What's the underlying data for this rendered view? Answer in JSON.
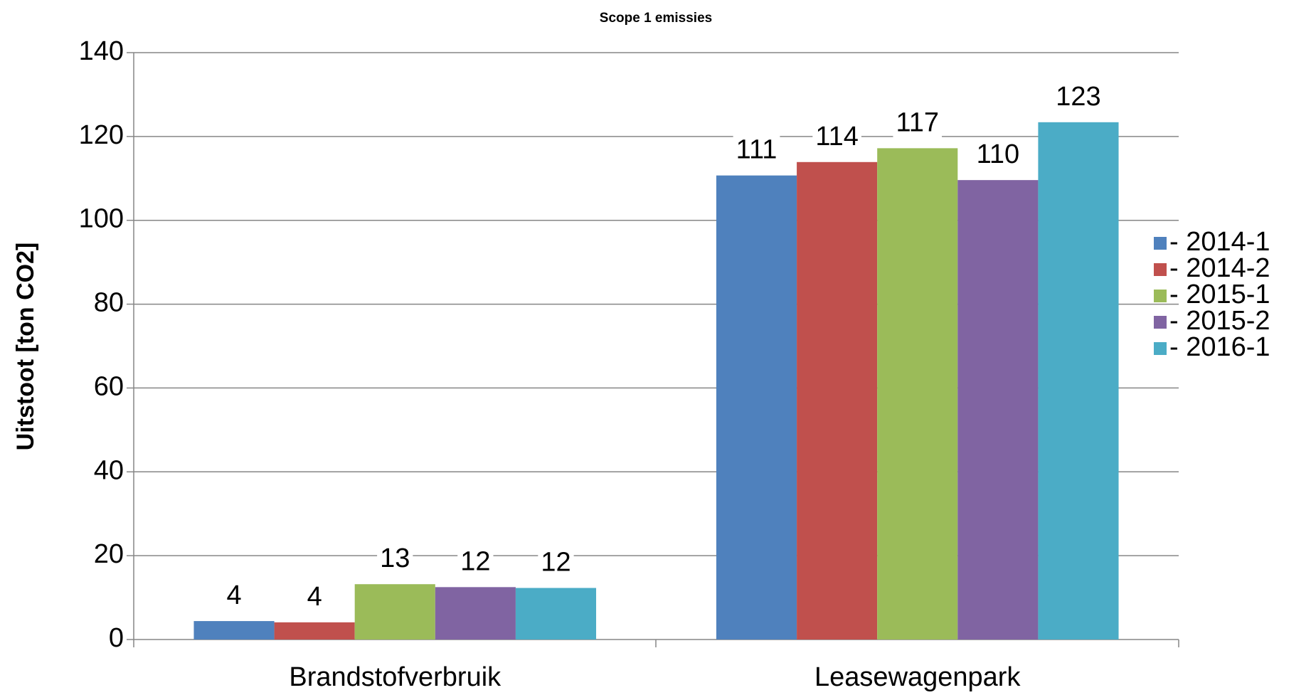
{
  "chart_data": {
    "type": "bar",
    "title": "Scope 1 emissies",
    "ylabel": "Uitstoot [ton CO2]",
    "categories": [
      "Brandstofverbruik",
      "Leasewagenpark"
    ],
    "series": [
      {
        "name": "- 2014-1",
        "color": "#4f81bd",
        "values": [
          4.4,
          110.7
        ],
        "value_labels": [
          "4",
          "111"
        ]
      },
      {
        "name": "- 2014-2",
        "color": "#c0504d",
        "values": [
          4.1,
          113.9
        ],
        "value_labels": [
          "4",
          "114"
        ]
      },
      {
        "name": "- 2015-1",
        "color": "#9bbb59",
        "values": [
          13.2,
          117.2
        ],
        "value_labels": [
          "13",
          "117"
        ]
      },
      {
        "name": "- 2015-2",
        "color": "#8064a2",
        "values": [
          12.5,
          109.6
        ],
        "value_labels": [
          "12",
          "110"
        ]
      },
      {
        "name": "- 2016-1",
        "color": "#4bacc6",
        "values": [
          12.3,
          123.4
        ],
        "value_labels": [
          "12",
          "123"
        ]
      }
    ],
    "ylim": [
      0,
      140
    ],
    "yticks": [
      0,
      20,
      40,
      60,
      80,
      100,
      120,
      140
    ],
    "grid": true,
    "legend": "right"
  }
}
